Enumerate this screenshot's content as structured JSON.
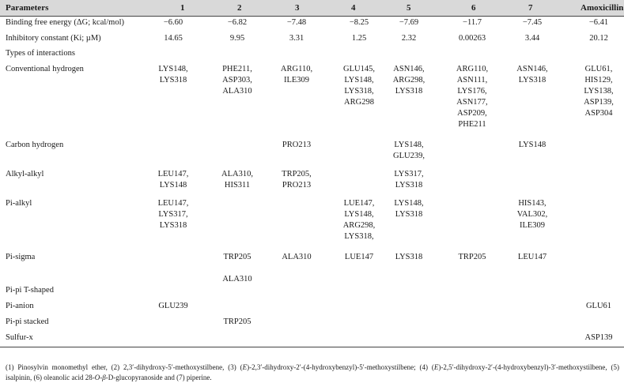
{
  "header": {
    "parameters": "Parameters",
    "columns": [
      "1",
      "2",
      "3",
      "4",
      "5",
      "6",
      "7",
      "Amoxicillin"
    ]
  },
  "rows": [
    {
      "label": "Binding free energy (ΔG; kcal/mol)",
      "cells": [
        "−6.60",
        "−6.82",
        "−7.48",
        "−8.25",
        "−7.69",
        "−11.7",
        "−7.45",
        "−6.41"
      ]
    },
    {
      "label": "Inhibitory constant (Ki; µM)",
      "cells": [
        "14.65",
        "9.95",
        "3.31",
        "1.25",
        "2.32",
        "0.00263",
        "3.44",
        "20.12"
      ]
    },
    {
      "label": "Types of interactions",
      "cells": [
        "",
        "",
        "",
        "",
        "",
        "",
        "",
        ""
      ]
    },
    {
      "label": "Conventional hydrogen",
      "cells": [
        "LYS148,\nLYS318",
        "PHE211,\nASP303,\nALA310",
        "ARG110,\nILE309",
        "GLU145,\nLYS148,\nLYS318,\nARG298",
        "ASN146,\nARG298,\nLYS318",
        "ARG110,\nASN111,\nLYS176,\nASN177,\nASP209,\nPHE211",
        "ASN146,\nLYS318",
        "GLU61,\nHIS129,\nLYS138,\nASP139,\nASP304"
      ]
    },
    {
      "label": "Carbon hydrogen",
      "cells": [
        "",
        "",
        "PRO213",
        "",
        "LYS148,\nGLU239,",
        "",
        "LYS148",
        ""
      ]
    },
    {
      "label": "Alkyl-alkyl",
      "cells": [
        "LEU147,\nLYS148",
        "ALA310,\nHIS311",
        "TRP205,\nPRO213",
        "",
        "LYS317,\nLYS318",
        "",
        "",
        ""
      ]
    },
    {
      "label": "Pi-alkyl",
      "cells": [
        "LEU147,\nLYS317,\nLYS318",
        "",
        "",
        "LUE147,\nLYS148,\nARG298,\nLYS318,",
        "LYS148,\nLYS318",
        "",
        "HIS143,\nVAL302,\nILE309",
        ""
      ]
    },
    {
      "label": "Pi-sigma",
      "cells": [
        "",
        "TRP205\n\nALA310",
        "ALA310",
        "LUE147",
        "LYS318",
        "TRP205",
        "LEU147",
        ""
      ]
    },
    {
      "label": "Pi-pi T-shaped",
      "cells": [
        "",
        "",
        "",
        "",
        "",
        "",
        "",
        ""
      ]
    },
    {
      "label": "Pi-anion",
      "cells": [
        "GLU239",
        "",
        "",
        "",
        "",
        "",
        "",
        "GLU61"
      ]
    },
    {
      "label": "Pi-pi stacked",
      "cells": [
        "",
        "TRP205",
        "",
        "",
        "",
        "",
        "",
        ""
      ]
    },
    {
      "label": "Sulfur-x",
      "cells": [
        "",
        "",
        "",
        "",
        "",
        "",
        "",
        "ASP139"
      ]
    }
  ],
  "footnote": {
    "p1": "(1) Pinosylvin monomethyl ether, (2) 2,3′-dihydroxy-5′-methoxystilbene, (3) (",
    "e1": "E",
    "p2": ")-2,3′-dihydroxy-2′-(4-hydroxybenzyl)-5′-methoxystilbene; (4) (",
    "e2": "E",
    "p3": ")-2,5′-dihydroxy-2′-(4-hydroxybenzyl)-3′-methoxystilbene, (5) isalpinin, (6) oleanolic acid 28-",
    "e3": "O",
    "p4": "-",
    "e4": "β",
    "p5": "-D-glucopyranoside and (7) piperine."
  }
}
